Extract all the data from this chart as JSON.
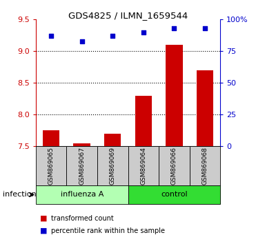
{
  "title": "GDS4825 / ILMN_1659544",
  "samples": [
    "GSM869065",
    "GSM869067",
    "GSM869069",
    "GSM869064",
    "GSM869066",
    "GSM869068"
  ],
  "transformed_count": [
    7.75,
    7.55,
    7.7,
    8.3,
    9.1,
    8.7
  ],
  "percentile_rank": [
    87,
    83,
    87,
    90,
    93,
    93
  ],
  "ylim_left": [
    7.5,
    9.5
  ],
  "ylim_right": [
    0,
    100
  ],
  "yticks_left": [
    7.5,
    8.0,
    8.5,
    9.0,
    9.5
  ],
  "yticks_right": [
    0,
    25,
    50,
    75,
    100
  ],
  "ytick_labels_right": [
    "0",
    "25",
    "50",
    "75",
    "100%"
  ],
  "group_labels": [
    "influenza A",
    "control"
  ],
  "group_colors_light": "#b3ffb3",
  "group_colors_dark": "#33dd33",
  "bar_color": "#cc0000",
  "scatter_color": "#0000cc",
  "axis_color_left": "#cc0000",
  "axis_color_right": "#0000cc",
  "sample_bg_color": "#cccccc",
  "infection_label": "infection",
  "legend_bar_label": "transformed count",
  "legend_scatter_label": "percentile rank within the sample",
  "n_influenza": 3,
  "n_control": 3,
  "bar_baseline": 7.5
}
